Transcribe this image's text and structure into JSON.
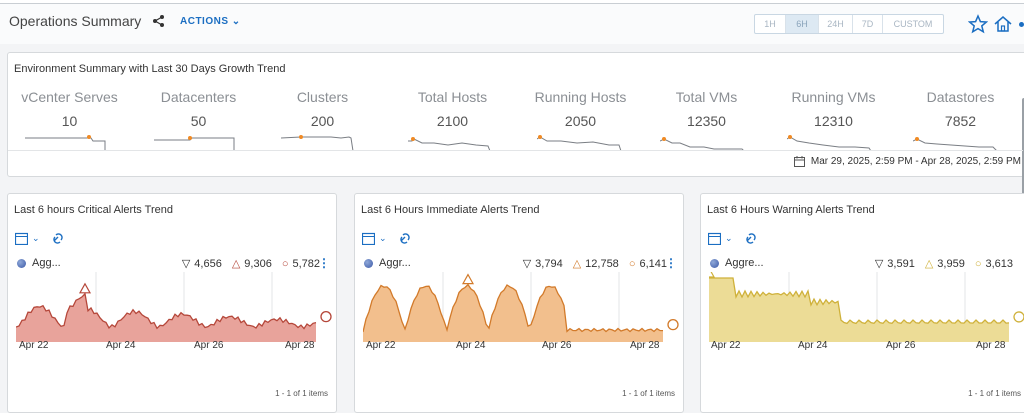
{
  "header": {
    "title": "Operations Summary",
    "actions_label": "ACTIONS",
    "time_ranges": [
      "1H",
      "6H",
      "24H",
      "7D",
      "CUSTOM"
    ],
    "active_range": "6H"
  },
  "summary": {
    "title": "Environment Summary with Last 30 Days Growth Trend",
    "metrics": [
      {
        "label": "vCenter Serves",
        "value": "10"
      },
      {
        "label": "Datacenters",
        "value": "50"
      },
      {
        "label": "Clusters",
        "value": "200"
      },
      {
        "label": "Total Hosts",
        "value": "2100"
      },
      {
        "label": "Running Hosts",
        "value": "2050"
      },
      {
        "label": "Total VMs",
        "value": "12350"
      },
      {
        "label": "Running VMs",
        "value": "12310"
      },
      {
        "label": "Datastores",
        "value": "7852"
      }
    ],
    "date_range": "Mar 29, 2025, 2:59 PM - Apr 28, 2025, 2:59 PM",
    "spark_color": "#7a7e84",
    "spark_marker_color": "#f08a24"
  },
  "panels": [
    {
      "title": "Last 6 hours Critical Alerts Trend",
      "series_name": "Agg...",
      "min": "4,656",
      "max": "9,306",
      "current": "5,782",
      "stroke": "#b5473a",
      "fill": "#e8a39b",
      "x_labels": [
        "Apr 22",
        "Apr 24",
        "Apr 26",
        "Apr 28"
      ],
      "pager": "1 - 1 of 1 items"
    },
    {
      "title": "Last 6 Hours Immediate Alerts Trend",
      "series_name": "Aggr...",
      "min": "3,794",
      "max": "12,758",
      "current": "6,141",
      "stroke": "#d27a2a",
      "fill": "#f2bf8d",
      "x_labels": [
        "Apr 22",
        "Apr 24",
        "Apr 26",
        "Apr 28"
      ],
      "pager": "1 - 1 of 1 items"
    },
    {
      "title": "Last 6 Hours Warning Alerts Trend",
      "series_name": "Aggre...",
      "min": "3,591",
      "max": "3,959",
      "current": "3,613",
      "stroke": "#cfb13a",
      "fill": "#ecdc96",
      "x_labels": [
        "Apr 22",
        "Apr 24",
        "Apr 26",
        "Apr 28"
      ],
      "pager": "1 - 1 of 1 items"
    }
  ]
}
